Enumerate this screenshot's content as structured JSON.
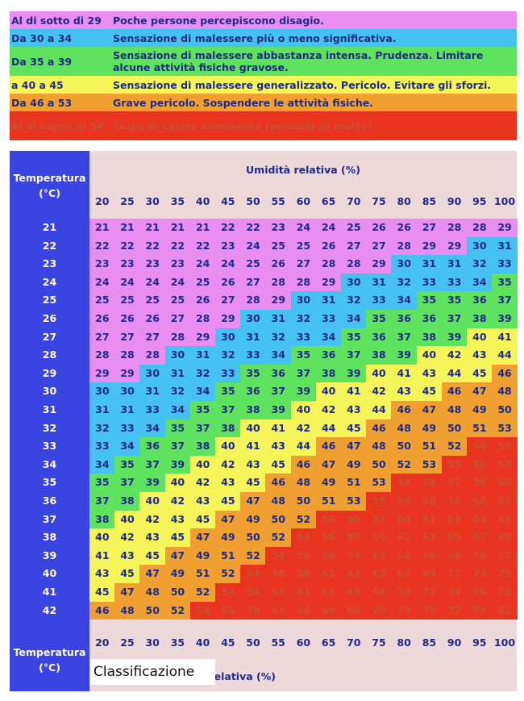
{
  "colors": {
    "purple": "#e88ef0",
    "blue": "#45c1f2",
    "green": "#5fe35f",
    "yellow": "#f5f55a",
    "orange": "#f0a030",
    "red": "#e8341e",
    "header_blue": "#3a44e0",
    "panel_pink": "#edd9d9"
  },
  "legend": [
    {
      "range": "Al di sotto di 29",
      "text": "Poche persone percepiscono disagio.",
      "color": "purple"
    },
    {
      "range": "Da 30 a 34",
      "text": "Sensazione di malessere più o meno significativa.",
      "color": "blue"
    },
    {
      "range": "Da 35 a 39",
      "text": "Sensazione di malessere abbastanza intensa. Prudenza. Limitare alcune attività fisiche gravose.",
      "color": "green"
    },
    {
      "range": "a 40 a 45",
      "text": "Sensazione di malessere generalizzato. Pericolo. Evitare gli sforzi.",
      "color": "yellow"
    },
    {
      "range": "Da 46 a 53",
      "text": "Grave pericolo. Sospendere le attività fisiche.",
      "color": "orange"
    },
    {
      "range": "Al di sopra di 54",
      "text": "Colpo di calore imminente (pericolo di morte)",
      "color": "red"
    }
  ],
  "table": {
    "temp_header": "Temperatura (°C)",
    "humidity_title": "Umidità relativa (%)",
    "humidity": [
      20,
      25,
      30,
      35,
      40,
      45,
      50,
      55,
      60,
      65,
      70,
      75,
      80,
      85,
      90,
      95,
      100
    ],
    "temperatures": [
      21,
      22,
      23,
      24,
      25,
      26,
      27,
      28,
      29,
      30,
      31,
      32,
      33,
      34,
      35,
      36,
      37,
      38,
      39,
      40,
      41,
      42
    ],
    "values": [
      [
        21,
        21,
        21,
        21,
        21,
        22,
        22,
        23,
        24,
        24,
        25,
        26,
        26,
        27,
        28,
        28,
        29
      ],
      [
        22,
        22,
        22,
        22,
        22,
        23,
        24,
        25,
        25,
        26,
        27,
        27,
        28,
        29,
        29,
        30,
        31
      ],
      [
        23,
        23,
        23,
        23,
        24,
        24,
        25,
        26,
        27,
        28,
        28,
        29,
        30,
        31,
        31,
        32,
        33
      ],
      [
        24,
        24,
        24,
        24,
        25,
        26,
        27,
        28,
        28,
        29,
        30,
        31,
        32,
        33,
        33,
        34,
        35
      ],
      [
        25,
        25,
        25,
        25,
        26,
        27,
        28,
        29,
        30,
        31,
        32,
        33,
        34,
        35,
        35,
        36,
        37
      ],
      [
        26,
        26,
        26,
        27,
        28,
        29,
        30,
        31,
        32,
        33,
        34,
        35,
        36,
        36,
        37,
        38,
        39
      ],
      [
        27,
        27,
        27,
        28,
        29,
        30,
        31,
        32,
        33,
        34,
        35,
        36,
        37,
        38,
        39,
        40,
        41
      ],
      [
        28,
        28,
        28,
        30,
        31,
        32,
        33,
        34,
        35,
        36,
        37,
        38,
        39,
        40,
        42,
        43,
        44
      ],
      [
        29,
        29,
        30,
        31,
        32,
        33,
        35,
        36,
        37,
        38,
        39,
        40,
        41,
        43,
        44,
        45,
        46
      ],
      [
        30,
        30,
        31,
        32,
        34,
        35,
        36,
        37,
        39,
        40,
        41,
        42,
        43,
        45,
        46,
        47,
        48
      ],
      [
        31,
        31,
        33,
        34,
        35,
        37,
        38,
        39,
        40,
        42,
        43,
        44,
        46,
        47,
        48,
        49,
        50
      ],
      [
        32,
        33,
        34,
        35,
        37,
        38,
        40,
        41,
        42,
        44,
        45,
        46,
        48,
        49,
        50,
        51,
        53
      ],
      [
        33,
        34,
        36,
        37,
        38,
        40,
        41,
        43,
        44,
        46,
        47,
        48,
        50,
        51,
        52,
        54,
        55
      ],
      [
        34,
        35,
        37,
        39,
        40,
        42,
        43,
        45,
        46,
        47,
        49,
        50,
        52,
        53,
        55,
        56,
        58
      ],
      [
        35,
        37,
        39,
        40,
        42,
        43,
        45,
        46,
        48,
        49,
        51,
        53,
        54,
        56,
        57,
        58,
        60
      ],
      [
        37,
        38,
        40,
        42,
        43,
        45,
        47,
        48,
        50,
        51,
        53,
        55,
        56,
        58,
        58,
        62,
        63
      ],
      [
        38,
        40,
        42,
        43,
        45,
        47,
        49,
        50,
        52,
        54,
        55,
        57,
        58,
        61,
        63,
        64,
        66
      ],
      [
        40,
        42,
        43,
        45,
        47,
        49,
        50,
        52,
        54,
        56,
        57,
        59,
        62,
        63,
        65,
        67,
        69
      ],
      [
        41,
        43,
        45,
        47,
        49,
        51,
        52,
        54,
        56,
        58,
        59,
        62,
        64,
        66,
        68,
        70,
        72
      ],
      [
        43,
        45,
        47,
        49,
        51,
        52,
        54,
        56,
        58,
        61,
        63,
        65,
        67,
        69,
        71,
        73,
        75
      ],
      [
        45,
        47,
        48,
        50,
        52,
        54,
        56,
        58,
        61,
        63,
        65,
        68,
        70,
        72,
        74,
        76,
        78
      ],
      [
        46,
        48,
        50,
        52,
        54,
        56,
        58,
        61,
        64,
        66,
        68,
        70,
        73,
        75,
        77,
        79,
        82
      ]
    ]
  },
  "footer": {
    "temp_header": "Temperatura (°C)",
    "humidity_title": "Umidità relativa (%)",
    "classification_label": "Classificazione"
  }
}
